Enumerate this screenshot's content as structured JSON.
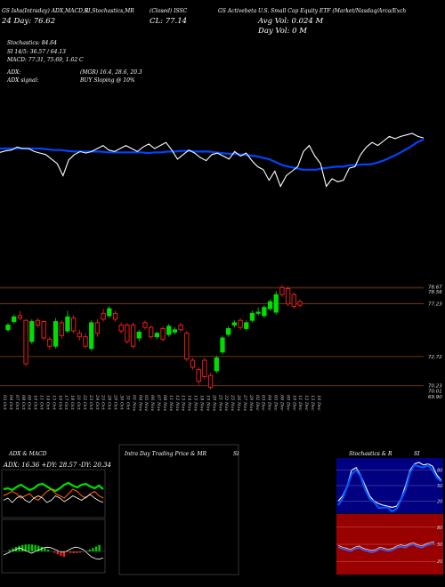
{
  "header": {
    "symbol_line": "GS Ishs(Intraday) ADX,MACD,R",
    "line2_left": "24 Day:   76.62",
    "stoch_label": "SI,Stochastics,MR",
    "closed_label": "(Closed) ISSC",
    "cl_value": "CL: 77.14",
    "etf_name": "GS Activebeta U.S. Small Cap Equity ETF (Market/Nasdaq/Arca/Exch",
    "avg_vol": "Avg Vol: 0.024  M",
    "day_vol": "Day Vol: 0   M"
  },
  "indicators": {
    "stochastics": "Stochastics: 84.64",
    "si": "SI 14/5: 36.57 / 64.13",
    "macd": "MACD: 77.31, 75.69, 1.62  C",
    "adx": "ADX:",
    "adx_val": "(MGR) 16.4, 28.6, 20.3",
    "adx_signal": "ADX  signal:",
    "adx_signal_val": "BUY Sloping @ 10%"
  },
  "price_axis": {
    "labels": [
      "78.67",
      "78.56",
      "77.23",
      "72.72",
      "70.23",
      "70.01",
      "69.90"
    ]
  },
  "dates": [
    "03 Oct",
    "04 Oct",
    "07 Oct",
    "08 Oct",
    "09 Oct",
    "10 Oct",
    "11 Oct",
    "14 Oct",
    "15 Oct",
    "16 Oct",
    "17 Oct",
    "18 Oct",
    "21 Oct",
    "22 Oct",
    "23 Oct",
    "24 Oct",
    "25 Oct",
    "28 Oct",
    "29 Oct",
    "30 Oct",
    "31 Oct",
    "01 Nov",
    "04 Nov",
    "05 Nov",
    "06 Nov",
    "07 Nov",
    "08 Nov",
    "11 Nov",
    "12 Nov",
    "13 Nov",
    "14 Nov",
    "15 Nov",
    "18 Nov",
    "19 Nov",
    "20 Nov",
    "21 Nov",
    "22 Nov",
    "25 Nov",
    "26 Nov",
    "27 Nov",
    "29 Nov",
    "02 Dec",
    "03 Dec",
    "04 Dec",
    "05 Dec",
    "06 Dec",
    "09 Dec",
    "10 Dec",
    "11 Dec",
    "12 Dec",
    "13 Dec",
    "16 Dec"
  ],
  "panels": {
    "adx_title": "ADX  & MACD",
    "adx_sub": "ADX: 16.36  +DY: 28.57  -DY: 20.34",
    "intra_title": "Intra  Day Trading Price  & MR",
    "intra_si": "SI",
    "stoch_title": "Stochastics & R",
    "stoch_si": "SI",
    "stoch_axis": [
      "80",
      "50",
      "20"
    ],
    "rsi_axis": [
      "80",
      "50",
      "20"
    ]
  },
  "colors": {
    "up": "#00dd00",
    "down": "#ff2020",
    "ema": "#0044ff",
    "price_line": "#ffffff",
    "navy": "#000080",
    "dark_red": "#990000"
  },
  "chart_data": {
    "type": "candlestick",
    "title": "GS Activebeta U.S. Small Cap Equity ETF",
    "y_range": [
      69.9,
      78.7
    ],
    "candles": [
      {
        "d": "03 Oct",
        "o": 75.0,
        "c": 75.4,
        "h": 75.6,
        "l": 74.8
      },
      {
        "d": "04 Oct",
        "o": 75.7,
        "c": 76.1,
        "h": 76.3,
        "l": 75.5
      },
      {
        "d": "07 Oct",
        "o": 76.2,
        "c": 76.0,
        "h": 76.6,
        "l": 75.8
      },
      {
        "d": "08 Oct",
        "o": 75.8,
        "c": 72.1,
        "h": 75.9,
        "l": 71.9
      },
      {
        "d": "09 Oct",
        "o": 74.0,
        "c": 75.7,
        "h": 75.9,
        "l": 73.8
      },
      {
        "d": "10 Oct",
        "o": 75.8,
        "c": 75.4,
        "h": 76.0,
        "l": 75.2
      },
      {
        "d": "11 Oct",
        "o": 75.7,
        "c": 74.3,
        "h": 75.8,
        "l": 74.1
      },
      {
        "d": "14 Oct",
        "o": 74.2,
        "c": 73.6,
        "h": 74.4,
        "l": 73.3
      },
      {
        "d": "15 Oct",
        "o": 73.6,
        "c": 75.7,
        "h": 76.0,
        "l": 73.4
      },
      {
        "d": "16 Oct",
        "o": 75.6,
        "c": 74.5,
        "h": 75.8,
        "l": 74.2
      },
      {
        "d": "17 Oct",
        "o": 74.9,
        "c": 76.1,
        "h": 76.6,
        "l": 74.7
      },
      {
        "d": "18 Oct",
        "o": 76.0,
        "c": 74.9,
        "h": 76.2,
        "l": 74.7
      },
      {
        "d": "21 Oct",
        "o": 74.7,
        "c": 74.4,
        "h": 75.0,
        "l": 74.1
      },
      {
        "d": "22 Oct",
        "o": 74.4,
        "c": 73.6,
        "h": 74.7,
        "l": 73.4
      },
      {
        "d": "23 Oct",
        "o": 73.4,
        "c": 75.6,
        "h": 75.8,
        "l": 73.2
      },
      {
        "d": "24 Oct",
        "o": 75.6,
        "c": 74.7,
        "h": 75.9,
        "l": 74.4
      },
      {
        "d": "25 Oct",
        "o": 76.4,
        "c": 75.9,
        "h": 76.8,
        "l": 75.7
      },
      {
        "d": "28 Oct",
        "o": 76.2,
        "c": 76.8,
        "h": 77.0,
        "l": 76.0
      },
      {
        "d": "29 Oct",
        "o": 76.4,
        "c": 75.9,
        "h": 76.6,
        "l": 75.7
      },
      {
        "d": "30 Oct",
        "o": 75.4,
        "c": 74.9,
        "h": 75.6,
        "l": 74.7
      },
      {
        "d": "31 Oct",
        "o": 75.4,
        "c": 74.0,
        "h": 75.6,
        "l": 73.8
      },
      {
        "d": "01 Nov",
        "o": 75.4,
        "c": 73.6,
        "h": 75.6,
        "l": 73.4
      },
      {
        "d": "04 Nov",
        "o": 74.3,
        "c": 74.8,
        "h": 75.0,
        "l": 74.0
      },
      {
        "d": "05 Nov",
        "o": 75.6,
        "c": 75.2,
        "h": 75.8,
        "l": 75.0
      },
      {
        "d": "06 Nov",
        "o": 75.2,
        "c": 74.4,
        "h": 75.4,
        "l": 74.2
      },
      {
        "d": "07 Nov",
        "o": 74.4,
        "c": 74.7,
        "h": 74.8,
        "l": 74.2
      },
      {
        "d": "08 Nov",
        "o": 75.1,
        "c": 74.2,
        "h": 75.3,
        "l": 74.0
      },
      {
        "d": "11 Nov",
        "o": 74.6,
        "c": 75.3,
        "h": 75.5,
        "l": 74.4
      },
      {
        "d": "12 Nov",
        "o": 74.8,
        "c": 75.0,
        "h": 75.2,
        "l": 74.6
      },
      {
        "d": "13 Nov",
        "o": 75.4,
        "c": 75.0,
        "h": 75.6,
        "l": 74.8
      },
      {
        "d": "14 Nov",
        "o": 74.7,
        "c": 72.5,
        "h": 74.9,
        "l": 72.3
      },
      {
        "d": "15 Nov",
        "o": 72.4,
        "c": 71.8,
        "h": 72.6,
        "l": 71.6
      },
      {
        "d": "18 Nov",
        "o": 71.6,
        "c": 70.6,
        "h": 71.8,
        "l": 70.3
      },
      {
        "d": "19 Nov",
        "o": 72.4,
        "c": 71.0,
        "h": 72.6,
        "l": 70.8
      },
      {
        "d": "20 Nov",
        "o": 71.1,
        "c": 70.1,
        "h": 71.3,
        "l": 69.9
      },
      {
        "d": "21 Nov",
        "o": 71.5,
        "c": 72.6,
        "h": 72.8,
        "l": 71.3
      },
      {
        "d": "22 Nov",
        "o": 73.1,
        "c": 74.3,
        "h": 74.5,
        "l": 72.9
      },
      {
        "d": "25 Nov",
        "o": 74.6,
        "c": 75.1,
        "h": 75.3,
        "l": 74.4
      },
      {
        "d": "26 Nov",
        "o": 75.4,
        "c": 75.6,
        "h": 75.8,
        "l": 75.2
      },
      {
        "d": "27 Nov",
        "o": 75.8,
        "c": 75.2,
        "h": 76.0,
        "l": 75.0
      },
      {
        "d": "29 Nov",
        "o": 75.1,
        "c": 75.6,
        "h": 75.8,
        "l": 74.9
      },
      {
        "d": "02 Dec",
        "o": 75.8,
        "c": 76.4,
        "h": 76.6,
        "l": 75.6
      },
      {
        "d": "03 Dec",
        "o": 76.4,
        "c": 76.5,
        "h": 76.9,
        "l": 76.2
      },
      {
        "d": "04 Dec",
        "o": 76.2,
        "c": 76.9,
        "h": 77.1,
        "l": 76.0
      },
      {
        "d": "05 Dec",
        "o": 76.8,
        "c": 77.4,
        "h": 77.6,
        "l": 76.6
      },
      {
        "d": "06 Dec",
        "o": 76.5,
        "c": 78.0,
        "h": 78.3,
        "l": 76.3
      },
      {
        "d": "09 Dec",
        "o": 78.6,
        "c": 78.0,
        "h": 78.8,
        "l": 77.8
      },
      {
        "d": "10 Dec",
        "o": 78.5,
        "c": 77.2,
        "h": 78.7,
        "l": 77.0
      },
      {
        "d": "11 Dec",
        "o": 78.0,
        "c": 77.0,
        "h": 78.2,
        "l": 76.8
      },
      {
        "d": "12 Dec",
        "o": 77.4,
        "c": 77.1,
        "h": 77.6,
        "l": 76.9
      }
    ],
    "price_line": [
      0.25,
      0.23,
      0.22,
      0.18,
      0.2,
      0.2,
      0.24,
      0.26,
      0.28,
      0.34,
      0.4,
      0.56,
      0.35,
      0.28,
      0.24,
      0.26,
      0.24,
      0.2,
      0.16,
      0.22,
      0.24,
      0.2,
      0.16,
      0.2,
      0.24,
      0.18,
      0.14,
      0.2,
      0.16,
      0.12,
      0.22,
      0.34,
      0.28,
      0.22,
      0.26,
      0.32,
      0.36,
      0.28,
      0.26,
      0.3,
      0.34,
      0.24,
      0.3,
      0.26,
      0.36,
      0.44,
      0.48,
      0.62,
      0.5,
      0.7,
      0.56,
      0.5,
      0.44,
      0.24,
      0.16,
      0.3,
      0.4,
      0.7,
      0.6,
      0.64,
      0.62,
      0.46,
      0.44,
      0.28,
      0.18,
      0.12,
      0.16,
      0.1,
      0.04,
      0.07,
      0.04,
      0.02,
      0.0,
      0.04,
      0.06
    ],
    "ema_line": [
      0.2,
      0.2,
      0.2,
      0.2,
      0.2,
      0.2,
      0.2,
      0.21,
      0.22,
      0.22,
      0.23,
      0.24,
      0.24,
      0.24,
      0.24,
      0.24,
      0.25,
      0.25,
      0.25,
      0.25,
      0.25,
      0.25,
      0.26,
      0.25,
      0.25,
      0.24,
      0.24,
      0.23,
      0.23,
      0.24,
      0.24,
      0.24,
      0.25,
      0.26,
      0.27,
      0.27,
      0.28,
      0.29,
      0.3,
      0.32,
      0.34,
      0.38,
      0.42,
      0.44,
      0.46,
      0.48,
      0.48,
      0.48,
      0.46,
      0.45,
      0.44,
      0.44,
      0.42,
      0.42,
      0.41,
      0.41,
      0.39,
      0.36,
      0.32,
      0.28,
      0.23,
      0.18,
      0.12,
      0.08
    ]
  }
}
